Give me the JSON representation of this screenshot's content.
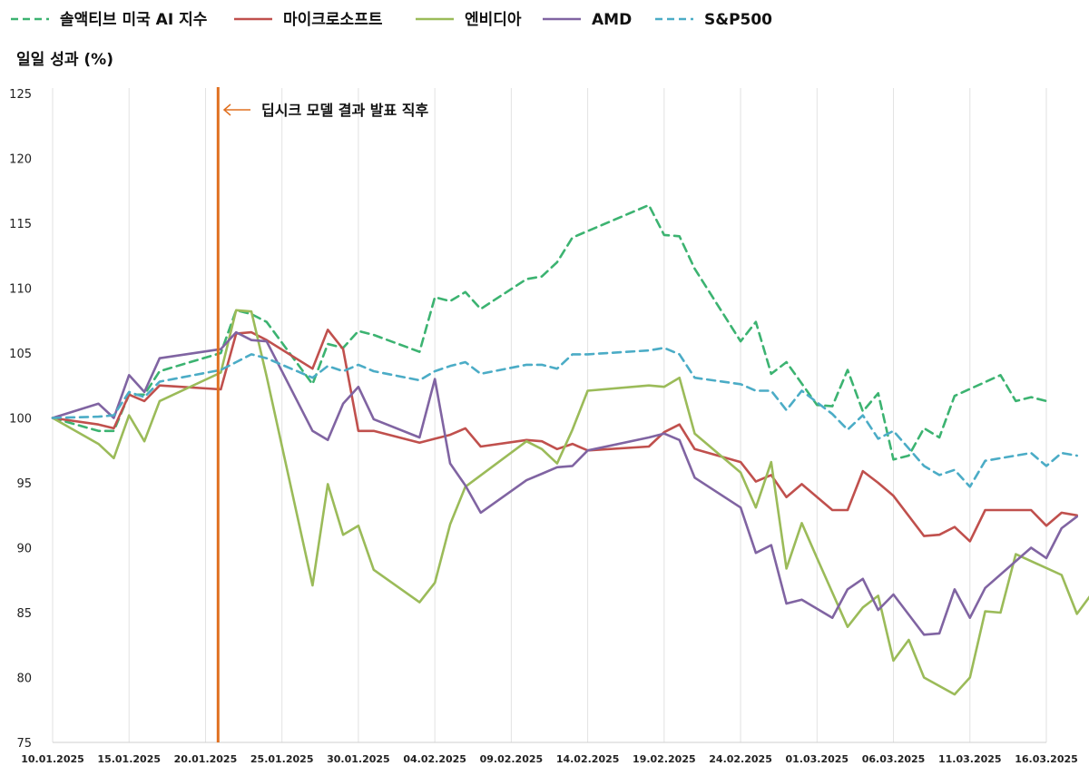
{
  "chart_data": {
    "type": "line",
    "ylabel": "일일 성과 (%)",
    "ylim": [
      75,
      125
    ],
    "yticks": [
      75,
      80,
      85,
      90,
      95,
      100,
      105,
      110,
      115,
      120,
      125
    ],
    "xlim": [
      "2025-01-10",
      "2025-03-16"
    ],
    "xticks": [
      "10.01.2025",
      "15.01.2025",
      "20.01.2025",
      "25.01.2025",
      "30.01.2025",
      "04.02.2025",
      "09.02.2025",
      "14.02.2025",
      "19.02.2025",
      "24.02.2025",
      "01.03.2025",
      "06.03.2025",
      "11.03.2025",
      "16.03.2025"
    ],
    "grid": "vertical",
    "legend": "top",
    "annotation": {
      "date": "2025-01-21",
      "label": "딥시크 모델 결과 발표 직후",
      "color": "#e07020"
    },
    "series": [
      {
        "name": "솔액티브 미국 AI 지수",
        "color": "#3cb371",
        "dash": "dashed",
        "points": [
          [
            "2025-01-10",
            100.0
          ],
          [
            "2025-01-13",
            99.0
          ],
          [
            "2025-01-14",
            99.0
          ],
          [
            "2025-01-15",
            101.8
          ],
          [
            "2025-01-16",
            101.8
          ],
          [
            "2025-01-17",
            103.6
          ],
          [
            "2025-01-21",
            105.0
          ],
          [
            "2025-01-22",
            108.3
          ],
          [
            "2025-01-23",
            108.0
          ],
          [
            "2025-01-24",
            107.4
          ],
          [
            "2025-01-27",
            102.6
          ],
          [
            "2025-01-28",
            105.7
          ],
          [
            "2025-01-29",
            105.4
          ],
          [
            "2025-01-30",
            106.7
          ],
          [
            "2025-01-31",
            106.4
          ],
          [
            "2025-02-03",
            105.1
          ],
          [
            "2025-02-04",
            109.3
          ],
          [
            "2025-02-05",
            109.0
          ],
          [
            "2025-02-06",
            109.7
          ],
          [
            "2025-02-07",
            108.4
          ],
          [
            "2025-02-10",
            110.7
          ],
          [
            "2025-02-11",
            110.9
          ],
          [
            "2025-02-12",
            112.0
          ],
          [
            "2025-02-13",
            113.9
          ],
          [
            "2025-02-18",
            116.4
          ],
          [
            "2025-02-19",
            114.1
          ],
          [
            "2025-02-20",
            114.0
          ],
          [
            "2025-02-21",
            111.5
          ],
          [
            "2025-02-24",
            105.9
          ],
          [
            "2025-02-25",
            107.4
          ],
          [
            "2025-02-26",
            103.4
          ],
          [
            "2025-02-27",
            104.3
          ],
          [
            "2025-03-01",
            101.0
          ],
          [
            "2025-03-02",
            100.9
          ],
          [
            "2025-03-03",
            103.7
          ],
          [
            "2025-03-04",
            100.5
          ],
          [
            "2025-03-05",
            101.9
          ],
          [
            "2025-03-06",
            96.8
          ],
          [
            "2025-03-07",
            97.1
          ],
          [
            "2025-03-08",
            99.2
          ],
          [
            "2025-03-09",
            98.5
          ],
          [
            "2025-03-10",
            101.7
          ],
          [
            "2025-03-13",
            103.3
          ],
          [
            "2025-03-14",
            101.3
          ],
          [
            "2025-03-15",
            101.6
          ],
          [
            "2025-03-16",
            101.3
          ]
        ]
      },
      {
        "name": "마이크로소프트",
        "color": "#c0504d",
        "dash": "solid",
        "points": [
          [
            "2025-01-10",
            100.0
          ],
          [
            "2025-01-13",
            99.5
          ],
          [
            "2025-01-14",
            99.2
          ],
          [
            "2025-01-15",
            101.8
          ],
          [
            "2025-01-16",
            101.3
          ],
          [
            "2025-01-17",
            102.5
          ],
          [
            "2025-01-21",
            102.2
          ],
          [
            "2025-01-22",
            106.5
          ],
          [
            "2025-01-23",
            106.6
          ],
          [
            "2025-01-24",
            106.0
          ],
          [
            "2025-01-27",
            103.8
          ],
          [
            "2025-01-28",
            106.8
          ],
          [
            "2025-01-29",
            105.3
          ],
          [
            "2025-01-30",
            99.0
          ],
          [
            "2025-01-31",
            99.0
          ],
          [
            "2025-02-03",
            98.1
          ],
          [
            "2025-02-04",
            98.4
          ],
          [
            "2025-02-05",
            98.7
          ],
          [
            "2025-02-06",
            99.2
          ],
          [
            "2025-02-07",
            97.8
          ],
          [
            "2025-02-10",
            98.3
          ],
          [
            "2025-02-11",
            98.2
          ],
          [
            "2025-02-12",
            97.6
          ],
          [
            "2025-02-13",
            98.0
          ],
          [
            "2025-02-14",
            97.5
          ],
          [
            "2025-02-18",
            97.8
          ],
          [
            "2025-02-19",
            98.9
          ],
          [
            "2025-02-20",
            99.5
          ],
          [
            "2025-02-21",
            97.6
          ],
          [
            "2025-02-24",
            96.6
          ],
          [
            "2025-02-25",
            95.1
          ],
          [
            "2025-02-26",
            95.6
          ],
          [
            "2025-02-27",
            93.9
          ],
          [
            "2025-02-28",
            94.9
          ],
          [
            "2025-03-02",
            92.9
          ],
          [
            "2025-03-03",
            92.9
          ],
          [
            "2025-03-04",
            95.9
          ],
          [
            "2025-03-05",
            95.0
          ],
          [
            "2025-03-06",
            94.0
          ],
          [
            "2025-03-08",
            90.9
          ],
          [
            "2025-03-09",
            91.0
          ],
          [
            "2025-03-10",
            91.6
          ],
          [
            "2025-03-11",
            90.5
          ],
          [
            "2025-03-12",
            92.9
          ],
          [
            "2025-03-15",
            92.9
          ],
          [
            "2025-03-16",
            91.7
          ],
          [
            "2025-03-17",
            92.7
          ],
          [
            "2025-03-18",
            92.5
          ]
        ]
      },
      {
        "name": "엔비디아",
        "color": "#9bbb59",
        "dash": "solid",
        "points": [
          [
            "2025-01-10",
            100.0
          ],
          [
            "2025-01-13",
            98.0
          ],
          [
            "2025-01-14",
            96.9
          ],
          [
            "2025-01-15",
            100.2
          ],
          [
            "2025-01-16",
            98.2
          ],
          [
            "2025-01-17",
            101.3
          ],
          [
            "2025-01-21",
            103.5
          ],
          [
            "2025-01-22",
            108.3
          ],
          [
            "2025-01-23",
            108.2
          ],
          [
            "2025-01-24",
            103.2
          ],
          [
            "2025-01-27",
            87.1
          ],
          [
            "2025-01-28",
            94.9
          ],
          [
            "2025-01-29",
            91.0
          ],
          [
            "2025-01-30",
            91.7
          ],
          [
            "2025-01-31",
            88.3
          ],
          [
            "2025-02-03",
            85.8
          ],
          [
            "2025-02-04",
            87.3
          ],
          [
            "2025-02-05",
            91.8
          ],
          [
            "2025-02-06",
            94.7
          ],
          [
            "2025-02-10",
            98.2
          ],
          [
            "2025-02-11",
            97.6
          ],
          [
            "2025-02-12",
            96.5
          ],
          [
            "2025-02-13",
            99.1
          ],
          [
            "2025-02-14",
            102.1
          ],
          [
            "2025-02-18",
            102.5
          ],
          [
            "2025-02-19",
            102.4
          ],
          [
            "2025-02-20",
            103.1
          ],
          [
            "2025-02-21",
            98.8
          ],
          [
            "2025-02-24",
            95.8
          ],
          [
            "2025-02-25",
            93.1
          ],
          [
            "2025-02-26",
            96.6
          ],
          [
            "2025-02-27",
            88.4
          ],
          [
            "2025-02-28",
            91.9
          ],
          [
            "2025-03-01",
            89.2
          ],
          [
            "2025-03-03",
            83.9
          ],
          [
            "2025-03-04",
            85.4
          ],
          [
            "2025-03-05",
            86.3
          ],
          [
            "2025-03-06",
            81.3
          ],
          [
            "2025-03-07",
            82.9
          ],
          [
            "2025-03-08",
            80.0
          ],
          [
            "2025-03-10",
            78.7
          ],
          [
            "2025-03-11",
            80.0
          ],
          [
            "2025-03-12",
            85.1
          ],
          [
            "2025-03-13",
            85.0
          ],
          [
            "2025-03-14",
            89.5
          ],
          [
            "2025-03-17",
            87.9
          ],
          [
            "2025-03-18",
            84.9
          ],
          [
            "2025-03-19",
            86.5
          ],
          [
            "2025-03-20",
            87.2
          ]
        ]
      },
      {
        "name": "AMD",
        "color": "#8064a2",
        "dash": "solid",
        "points": [
          [
            "2025-01-10",
            100.0
          ],
          [
            "2025-01-13",
            101.1
          ],
          [
            "2025-01-14",
            100.0
          ],
          [
            "2025-01-15",
            103.3
          ],
          [
            "2025-01-16",
            102.0
          ],
          [
            "2025-01-17",
            104.6
          ],
          [
            "2025-01-21",
            105.3
          ],
          [
            "2025-01-22",
            106.6
          ],
          [
            "2025-01-23",
            106.0
          ],
          [
            "2025-01-24",
            105.9
          ],
          [
            "2025-01-27",
            99.0
          ],
          [
            "2025-01-28",
            98.3
          ],
          [
            "2025-01-29",
            101.1
          ],
          [
            "2025-01-30",
            102.4
          ],
          [
            "2025-01-31",
            99.9
          ],
          [
            "2025-02-03",
            98.5
          ],
          [
            "2025-02-04",
            103.0
          ],
          [
            "2025-02-05",
            96.5
          ],
          [
            "2025-02-06",
            94.8
          ],
          [
            "2025-02-07",
            92.7
          ],
          [
            "2025-02-10",
            95.2
          ],
          [
            "2025-02-11",
            95.7
          ],
          [
            "2025-02-12",
            96.2
          ],
          [
            "2025-02-13",
            96.3
          ],
          [
            "2025-02-14",
            97.5
          ],
          [
            "2025-02-18",
            98.5
          ],
          [
            "2025-02-19",
            98.8
          ],
          [
            "2025-02-20",
            98.3
          ],
          [
            "2025-02-21",
            95.4
          ],
          [
            "2025-02-24",
            93.1
          ],
          [
            "2025-02-25",
            89.6
          ],
          [
            "2025-02-26",
            90.2
          ],
          [
            "2025-02-27",
            85.7
          ],
          [
            "2025-02-28",
            86.0
          ],
          [
            "2025-03-02",
            84.6
          ],
          [
            "2025-03-03",
            86.8
          ],
          [
            "2025-03-04",
            87.6
          ],
          [
            "2025-03-05",
            85.2
          ],
          [
            "2025-03-06",
            86.4
          ],
          [
            "2025-03-08",
            83.3
          ],
          [
            "2025-03-09",
            83.4
          ],
          [
            "2025-03-10",
            86.8
          ],
          [
            "2025-03-11",
            84.6
          ],
          [
            "2025-03-12",
            86.9
          ],
          [
            "2025-03-15",
            90.0
          ],
          [
            "2025-03-16",
            89.2
          ],
          [
            "2025-03-17",
            91.5
          ],
          [
            "2025-03-18",
            92.4
          ]
        ]
      },
      {
        "name": "S&P500",
        "color": "#4bacc6",
        "dash": "dashed",
        "points": [
          [
            "2025-01-10",
            100.0
          ],
          [
            "2025-01-13",
            100.1
          ],
          [
            "2025-01-14",
            100.2
          ],
          [
            "2025-01-15",
            102.0
          ],
          [
            "2025-01-16",
            101.6
          ],
          [
            "2025-01-17",
            102.8
          ],
          [
            "2025-01-21",
            103.7
          ],
          [
            "2025-01-22",
            104.3
          ],
          [
            "2025-01-23",
            104.9
          ],
          [
            "2025-01-24",
            104.6
          ],
          [
            "2025-01-27",
            103.1
          ],
          [
            "2025-01-28",
            104.0
          ],
          [
            "2025-01-29",
            103.6
          ],
          [
            "2025-01-30",
            104.1
          ],
          [
            "2025-01-31",
            103.6
          ],
          [
            "2025-02-03",
            102.9
          ],
          [
            "2025-02-04",
            103.6
          ],
          [
            "2025-02-05",
            104.0
          ],
          [
            "2025-02-06",
            104.3
          ],
          [
            "2025-02-07",
            103.4
          ],
          [
            "2025-02-10",
            104.1
          ],
          [
            "2025-02-11",
            104.1
          ],
          [
            "2025-02-12",
            103.8
          ],
          [
            "2025-02-13",
            104.9
          ],
          [
            "2025-02-14",
            104.9
          ],
          [
            "2025-02-18",
            105.2
          ],
          [
            "2025-02-19",
            105.4
          ],
          [
            "2025-02-20",
            104.9
          ],
          [
            "2025-02-21",
            103.1
          ],
          [
            "2025-02-24",
            102.6
          ],
          [
            "2025-02-25",
            102.1
          ],
          [
            "2025-02-26",
            102.1
          ],
          [
            "2025-02-27",
            100.6
          ],
          [
            "2025-02-28",
            102.1
          ],
          [
            "2025-03-02",
            100.3
          ],
          [
            "2025-03-03",
            99.1
          ],
          [
            "2025-03-04",
            100.2
          ],
          [
            "2025-03-05",
            98.4
          ],
          [
            "2025-03-06",
            99.0
          ],
          [
            "2025-03-08",
            96.3
          ],
          [
            "2025-03-09",
            95.6
          ],
          [
            "2025-03-10",
            96.0
          ],
          [
            "2025-03-11",
            94.7
          ],
          [
            "2025-03-12",
            96.7
          ],
          [
            "2025-03-15",
            97.3
          ],
          [
            "2025-03-16",
            96.3
          ],
          [
            "2025-03-17",
            97.3
          ],
          [
            "2025-03-18",
            97.1
          ]
        ]
      }
    ]
  }
}
